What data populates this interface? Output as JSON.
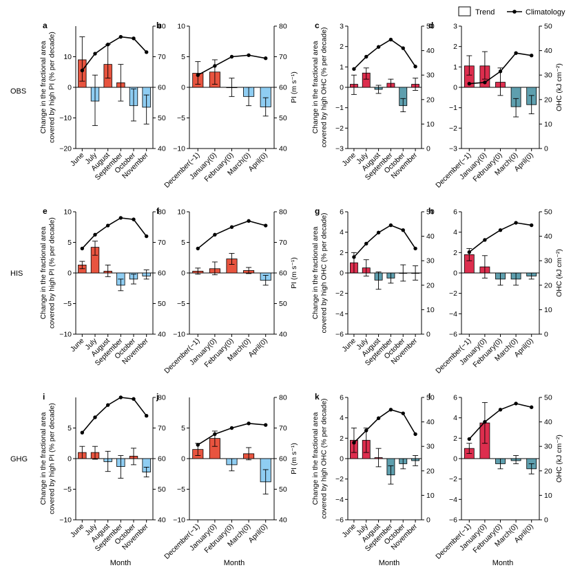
{
  "legend": {
    "trend_label": "Trend",
    "clim_label": "Climatology"
  },
  "rows": [
    "OBS",
    "HIS",
    "GHG"
  ],
  "xlabel": "Month",
  "ylabel_pi": [
    "Change in the fractional area",
    "covered by high PI (% per decade)"
  ],
  "ylabel_ohc": [
    "Change in the fractional area",
    "covered by high OHC (% per decade)"
  ],
  "y2label_pi": "PI (m s⁻¹)",
  "y2label_ohc": "OHC (kJ cm⁻²)",
  "colors": {
    "pos_pi": "#e8543f",
    "neg_pi": "#8fcdf2",
    "pos_ohc": "#dd2e4e",
    "neg_ohc": "#5e9fae",
    "line": "#000000"
  },
  "months_main": [
    "June",
    "July",
    "August",
    "September",
    "October",
    "November"
  ],
  "months_winter": [
    "December(−1)",
    "January(0)",
    "February(0)",
    "March(0)",
    "April(0)"
  ],
  "chart_data": [
    {
      "panel": "a",
      "type": "bar+line",
      "row": "OBS",
      "var": "PI",
      "ylim": [
        -20,
        20
      ],
      "yticks": [
        -20,
        -10,
        0,
        10
      ],
      "y2lim": [
        40,
        80
      ],
      "y2ticks": [
        40,
        50,
        60,
        70,
        80
      ],
      "categories": [
        "June",
        "July",
        "August",
        "September",
        "October",
        "November"
      ],
      "trend": [
        9,
        -4.5,
        7.5,
        1.5,
        -6,
        -6.5
      ],
      "err_low": [
        2,
        -12.5,
        3,
        -4.5,
        -11,
        -12
      ],
      "err_high": [
        16.5,
        4,
        14,
        7.5,
        -0.5,
        -2.5
      ],
      "climatology": [
        65.5,
        71,
        74,
        76.5,
        76,
        71.5
      ]
    },
    {
      "panel": "b",
      "type": "bar+line",
      "row": "OBS",
      "var": "PI",
      "ylim": [
        -10,
        10
      ],
      "yticks": [
        -10,
        -5,
        0,
        5,
        10
      ],
      "y2lim": [
        40,
        80
      ],
      "y2ticks": [
        40,
        50,
        60,
        70,
        80
      ],
      "categories": [
        "December(−1)",
        "January(0)",
        "February(0)",
        "March(0)",
        "April(0)"
      ],
      "trend": [
        2.3,
        2.5,
        0,
        -1.5,
        -3.2
      ],
      "err_low": [
        0.5,
        0.5,
        -1.5,
        -3,
        -4.7
      ],
      "err_high": [
        4.2,
        4.5,
        1.5,
        0,
        -1.7
      ],
      "climatology": [
        64,
        67,
        70,
        70.5,
        69.5
      ]
    },
    {
      "panel": "c",
      "type": "bar+line",
      "row": "OBS",
      "var": "OHC",
      "ylim": [
        -3,
        3
      ],
      "yticks": [
        -3,
        -2,
        -1,
        0,
        1,
        2,
        3
      ],
      "y2lim": [
        0,
        50
      ],
      "y2ticks": [
        0,
        10,
        20,
        30,
        40,
        50
      ],
      "categories": [
        "June",
        "July",
        "August",
        "September",
        "October",
        "November"
      ],
      "trend": [
        0.15,
        0.7,
        -0.1,
        0.2,
        -0.9,
        0.15
      ],
      "err_low": [
        -0.35,
        0.4,
        -0.3,
        0,
        -1.2,
        -0.15
      ],
      "err_high": [
        0.6,
        0.95,
        0.1,
        0.4,
        -0.55,
        0.45
      ],
      "climatology": [
        32.5,
        37.5,
        41.5,
        44.5,
        41,
        33.5
      ]
    },
    {
      "panel": "d",
      "type": "bar+line",
      "row": "OBS",
      "var": "OHC",
      "ylim": [
        -3,
        3
      ],
      "yticks": [
        -3,
        -2,
        -1,
        0,
        1,
        2,
        3
      ],
      "y2lim": [
        0,
        50
      ],
      "y2ticks": [
        0,
        10,
        20,
        30,
        40,
        50
      ],
      "categories": [
        "December(−1)",
        "January(0)",
        "February(0)",
        "March(0)",
        "April(0)"
      ],
      "trend": [
        1.05,
        1.05,
        0.25,
        -0.95,
        -0.85
      ],
      "err_low": [
        0.6,
        0.4,
        -0.4,
        -1.45,
        -1.3
      ],
      "err_high": [
        1.55,
        1.75,
        0.95,
        -0.55,
        -0.4
      ],
      "climatology": [
        26.5,
        27,
        31.5,
        39,
        38
      ]
    },
    {
      "panel": "e",
      "type": "bar+line",
      "row": "HIS",
      "var": "PI",
      "ylim": [
        -10,
        10
      ],
      "yticks": [
        -10,
        -5,
        0,
        5,
        10
      ],
      "y2lim": [
        40,
        80
      ],
      "y2ticks": [
        40,
        50,
        60,
        70,
        80
      ],
      "categories": [
        "June",
        "July",
        "August",
        "September",
        "October",
        "November"
      ],
      "trend": [
        1.3,
        4.2,
        0.3,
        -2,
        -1,
        -0.5
      ],
      "err_low": [
        0.7,
        2.9,
        -0.6,
        -2.9,
        -1.8,
        -1
      ],
      "err_high": [
        1.9,
        5.2,
        1.3,
        -1,
        -0.2,
        0.5
      ],
      "climatology": [
        68,
        72.5,
        75.5,
        78,
        77.5,
        72
      ]
    },
    {
      "panel": "f",
      "type": "bar+line",
      "row": "HIS",
      "var": "PI",
      "ylim": [
        -10,
        10
      ],
      "yticks": [
        -10,
        -5,
        0,
        5,
        10
      ],
      "y2lim": [
        40,
        80
      ],
      "y2ticks": [
        40,
        50,
        60,
        70,
        80
      ],
      "categories": [
        "December(−1)",
        "January(0)",
        "February(0)",
        "March(0)",
        "April(0)"
      ],
      "trend": [
        0.3,
        0.7,
        2.3,
        0.4,
        -1.2
      ],
      "err_low": [
        -0.2,
        -0.3,
        1.4,
        -0.1,
        -2
      ],
      "err_high": [
        0.8,
        1.8,
        3.2,
        0.9,
        -0.4
      ],
      "climatology": [
        68,
        72.5,
        75,
        77,
        75.5
      ]
    },
    {
      "panel": "g",
      "type": "bar+line",
      "row": "HIS",
      "var": "OHC",
      "ylim": [
        -6,
        6
      ],
      "yticks": [
        -6,
        -4,
        -2,
        0,
        2,
        4,
        6
      ],
      "y2lim": [
        0,
        50
      ],
      "y2ticks": [
        0,
        10,
        20,
        30,
        40,
        50
      ],
      "categories": [
        "June",
        "July",
        "August",
        "September",
        "October",
        "November"
      ],
      "trend": [
        1,
        0.5,
        -0.7,
        -0.5,
        0,
        0
      ],
      "err_low": [
        0,
        -0.3,
        -1.6,
        -1,
        -0.8,
        -0.7
      ],
      "err_high": [
        2,
        1.3,
        0.1,
        0,
        0.8,
        0.7
      ],
      "climatology": [
        31.5,
        37,
        41.5,
        44.5,
        42.5,
        35
      ]
    },
    {
      "panel": "h",
      "type": "bar+line",
      "row": "HIS",
      "var": "OHC",
      "ylim": [
        -6,
        6
      ],
      "yticks": [
        -6,
        -4,
        -2,
        0,
        2,
        4,
        6
      ],
      "y2lim": [
        0,
        50
      ],
      "y2ticks": [
        0,
        10,
        20,
        30,
        40,
        50
      ],
      "categories": [
        "December(−1)",
        "January(0)",
        "February(0)",
        "March(0)",
        "April(0)"
      ],
      "trend": [
        1.8,
        0.6,
        -0.6,
        -0.6,
        -0.3
      ],
      "err_low": [
        1.2,
        -0.5,
        -1.2,
        -1.2,
        -0.6
      ],
      "err_high": [
        2.4,
        1.7,
        0,
        0,
        0
      ],
      "climatology": [
        33.5,
        38.5,
        42.5,
        45.5,
        44.5
      ]
    },
    {
      "panel": "i",
      "type": "bar+line",
      "row": "GHG",
      "var": "PI",
      "ylim": [
        -10,
        10
      ],
      "yticks": [
        -10,
        -5,
        0,
        5
      ],
      "y2lim": [
        40,
        80
      ],
      "y2ticks": [
        40,
        50,
        60,
        70,
        80
      ],
      "categories": [
        "June",
        "July",
        "August",
        "September",
        "October",
        "November"
      ],
      "trend": [
        1,
        1,
        -0.5,
        -1.3,
        0.4,
        -2.2
      ],
      "err_low": [
        0,
        -0.1,
        -2.1,
        -3.2,
        -1,
        -3
      ],
      "err_high": [
        2,
        2,
        1.2,
        0.5,
        1.7,
        -1.4
      ],
      "climatology": [
        68.5,
        73.5,
        77.5,
        80,
        79.5,
        74
      ]
    },
    {
      "panel": "j",
      "type": "bar+line",
      "row": "GHG",
      "var": "PI",
      "ylim": [
        -10,
        10
      ],
      "yticks": [
        -10,
        -5,
        0,
        5
      ],
      "y2lim": [
        40,
        80
      ],
      "y2ticks": [
        40,
        50,
        60,
        70,
        80
      ],
      "categories": [
        "December(−1)",
        "January(0)",
        "February(0)",
        "March(0)",
        "April(0)"
      ],
      "trend": [
        1.5,
        3.3,
        -1,
        0.8,
        -3.8
      ],
      "err_low": [
        0.5,
        2,
        -2,
        -0.2,
        -5.8
      ],
      "err_high": [
        2.5,
        4.5,
        0,
        1.8,
        -1.8
      ],
      "climatology": [
        64.5,
        68,
        70,
        71.5,
        71
      ]
    },
    {
      "panel": "k",
      "type": "bar+line",
      "row": "GHG",
      "var": "OHC",
      "ylim": [
        -6,
        6
      ],
      "yticks": [
        -6,
        -4,
        -2,
        0,
        2,
        4,
        6
      ],
      "y2lim": [
        0,
        50
      ],
      "y2ticks": [
        0,
        10,
        20,
        30,
        40,
        50
      ],
      "categories": [
        "June",
        "July",
        "August",
        "September",
        "October",
        "November"
      ],
      "trend": [
        1.8,
        1.8,
        0.1,
        -1.6,
        -0.5,
        -0.2
      ],
      "err_low": [
        0.6,
        0.6,
        -0.8,
        -2.5,
        -1,
        -0.7
      ],
      "err_high": [
        3,
        3,
        1,
        -0.7,
        0,
        0.3
      ],
      "climatology": [
        31.5,
        36.5,
        41.5,
        45,
        43.5,
        35
      ]
    },
    {
      "panel": "l",
      "type": "bar+line",
      "row": "GHG",
      "var": "OHC",
      "ylim": [
        -6,
        6
      ],
      "yticks": [
        -6,
        -4,
        -2,
        0,
        2,
        4,
        6
      ],
      "y2lim": [
        0,
        50
      ],
      "y2ticks": [
        0,
        10,
        20,
        30,
        40,
        50
      ],
      "categories": [
        "December(−1)",
        "January(0)",
        "February(0)",
        "March(0)",
        "April(0)"
      ],
      "trend": [
        1,
        3.5,
        -0.5,
        -0.2,
        -1
      ],
      "err_low": [
        0.5,
        1.5,
        -1,
        -0.5,
        -1.5
      ],
      "err_high": [
        1.5,
        5.5,
        0,
        0.3,
        -0.5
      ],
      "climatology": [
        33,
        40,
        45,
        47.5,
        46
      ]
    }
  ]
}
